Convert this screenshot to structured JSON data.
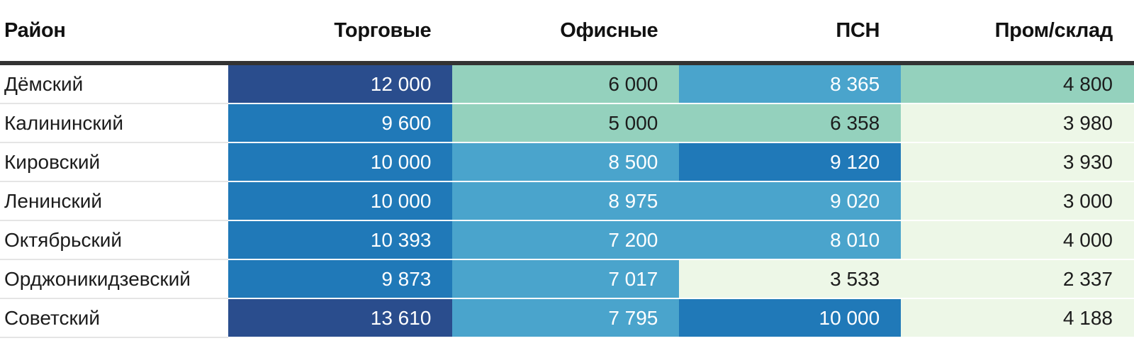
{
  "table": {
    "columns": [
      {
        "label": "Район"
      },
      {
        "label": "Торговые"
      },
      {
        "label": "Офисные"
      },
      {
        "label": "ПСН"
      },
      {
        "label": "Пром/склад"
      }
    ],
    "dark_text_tones": [
      "teal",
      "green_light"
    ],
    "rows": [
      {
        "district": "Дёмский",
        "values": [
          "12 000",
          "6 000",
          "8 365",
          "4 800"
        ],
        "tones": [
          "navy",
          "teal",
          "blue_light",
          "teal"
        ]
      },
      {
        "district": "Калининский",
        "values": [
          "9 600",
          "5 000",
          "6 358",
          "3 980"
        ],
        "tones": [
          "blue",
          "teal",
          "teal",
          "green_light"
        ]
      },
      {
        "district": "Кировский",
        "values": [
          "10 000",
          "8 500",
          "9 120",
          "3 930"
        ],
        "tones": [
          "blue",
          "blue_light",
          "blue",
          "green_light"
        ]
      },
      {
        "district": "Ленинский",
        "values": [
          "10 000",
          "8 975",
          "9 020",
          "3 000"
        ],
        "tones": [
          "blue",
          "blue_light",
          "blue_light",
          "green_light"
        ]
      },
      {
        "district": "Октябрьский",
        "values": [
          "10 393",
          "7 200",
          "8 010",
          "4 000"
        ],
        "tones": [
          "blue",
          "blue_light",
          "blue_light",
          "green_light"
        ]
      },
      {
        "district": "Орджоникидзевский",
        "values": [
          "9 873",
          "7 017",
          "3 533",
          "2 337"
        ],
        "tones": [
          "blue",
          "blue_light",
          "green_light",
          "green_light"
        ]
      },
      {
        "district": "Советский",
        "values": [
          "13 610",
          "7 795",
          "10 000",
          "4 188"
        ],
        "tones": [
          "navy",
          "blue_light",
          "blue",
          "green_light"
        ]
      }
    ]
  },
  "palette": {
    "navy": "#2a4d8d",
    "blue": "#2079b8",
    "blue_light": "#4aa4cc",
    "teal": "#94d1bd",
    "green_light": "#edf7e7",
    "text_light": "#ffffff",
    "text_dark": "#1c1c1c",
    "header_rule": "#333333"
  },
  "chart_data": {
    "type": "heatmap",
    "title": "",
    "rows": [
      "Дёмский",
      "Калининский",
      "Кировский",
      "Ленинский",
      "Октябрьский",
      "Орджоникидзевский",
      "Советский"
    ],
    "columns": [
      "Торговые",
      "Офисные",
      "ПСН",
      "Пром/склад"
    ],
    "values": [
      [
        12000,
        6000,
        8365,
        4800
      ],
      [
        9600,
        5000,
        6358,
        3980
      ],
      [
        10000,
        8500,
        9120,
        3930
      ],
      [
        10000,
        8975,
        9020,
        3000
      ],
      [
        10393,
        7200,
        8010,
        4000
      ],
      [
        9873,
        7017,
        3533,
        2337
      ],
      [
        13610,
        7795,
        10000,
        4188
      ]
    ],
    "value_range": [
      2337,
      13610
    ],
    "color_scale": {
      "low": "#edf7e7",
      "mid": "#94d1bd",
      "high": "#2a4d8d"
    },
    "legend": "none",
    "grid": "off"
  }
}
